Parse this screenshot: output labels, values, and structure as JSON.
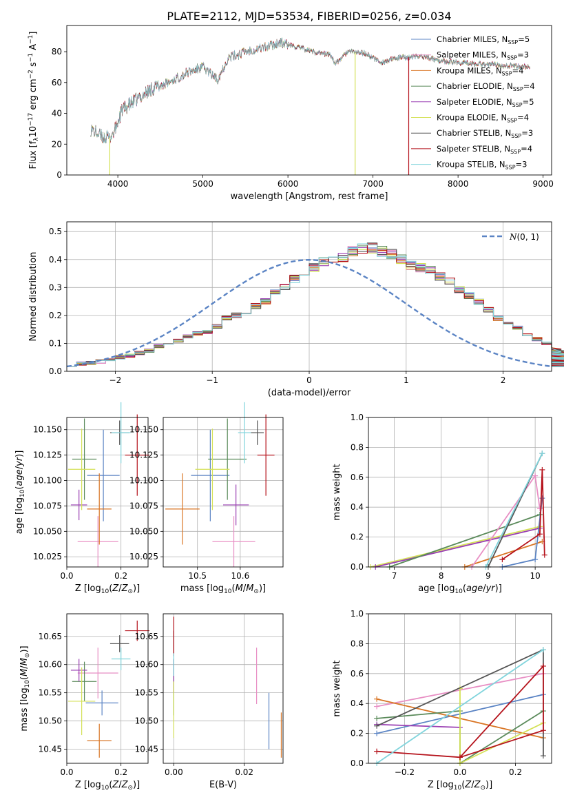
{
  "figure_title": "PLATE=2112, MJD=53534, FIBERID=0256, z=0.034",
  "colors": {
    "Chabrier MILES": "#5b84c4",
    "Salpeter MILES": "#e88fc4",
    "Kroupa MILES": "#d97524",
    "Chabrier ELODIE": "#5a8a5a",
    "Salpeter ELODIE": "#9a3fb3",
    "Kroupa ELODIE": "#d4e157",
    "Chabrier STELIB": "#555555",
    "Salpeter STELIB": "#b5121b",
    "Kroupa STELIB": "#80d4dc",
    "normal_curve": "#5b84c4",
    "grid": "#b0b0b0"
  },
  "models": [
    {
      "key": "Chabrier MILES",
      "legend": "Chabrier MILES, N",
      "nssp": "=5"
    },
    {
      "key": "Salpeter MILES",
      "legend": "Salpeter MILES, N",
      "nssp": "=3"
    },
    {
      "key": "Kroupa MILES",
      "legend": "Kroupa MILES, N",
      "nssp": "=4"
    },
    {
      "key": "Chabrier ELODIE",
      "legend": "Chabrier ELODIE, N",
      "nssp": "=4"
    },
    {
      "key": "Salpeter ELODIE",
      "legend": "Salpeter ELODIE, N",
      "nssp": "=5"
    },
    {
      "key": "Kroupa ELODIE",
      "legend": "Kroupa ELODIE, N",
      "nssp": "=4"
    },
    {
      "key": "Chabrier STELIB",
      "legend": "Chabrier STELIB, N",
      "nssp": "=3"
    },
    {
      "key": "Salpeter STELIB",
      "legend": "Salpeter STELIB, N",
      "nssp": "=4"
    },
    {
      "key": "Kroupa STELIB",
      "legend": "Kroupa STELIB, N",
      "nssp": "=3"
    }
  ],
  "chart_data": [
    {
      "id": "spectrum",
      "type": "line",
      "xlabel": "wavelength [Angstrom, rest frame]",
      "ylabel": "Flux [f_λ 10^-17 erg cm^-2 s^-1 A^-1]",
      "xlim": [
        3400,
        9100
      ],
      "ylim": [
        0,
        97
      ],
      "xticks": [
        4000,
        5000,
        6000,
        7000,
        8000,
        9000
      ],
      "yticks": [
        0,
        20,
        40,
        60,
        80
      ],
      "legend_position": "top-right",
      "continuum": [
        [
          3680,
          30
        ],
        [
          3800,
          25
        ],
        [
          3900,
          24
        ],
        [
          3960,
          28
        ],
        [
          4050,
          42
        ],
        [
          4200,
          48
        ],
        [
          4400,
          56
        ],
        [
          4600,
          60
        ],
        [
          4800,
          66
        ],
        [
          5000,
          70
        ],
        [
          5170,
          62
        ],
        [
          5300,
          76
        ],
        [
          5500,
          80
        ],
        [
          5800,
          84
        ],
        [
          5900,
          86
        ],
        [
          6100,
          83
        ],
        [
          6300,
          80
        ],
        [
          6500,
          78
        ],
        [
          6563,
          72
        ],
        [
          6700,
          80
        ],
        [
          6900,
          79
        ],
        [
          7100,
          73
        ],
        [
          7300,
          76
        ],
        [
          7600,
          77
        ],
        [
          7800,
          74
        ],
        [
          8000,
          73
        ],
        [
          8300,
          72
        ],
        [
          8600,
          71
        ],
        [
          8850,
          70
        ]
      ],
      "spikes": [
        {
          "model": "Kroupa ELODIE",
          "x": 3905,
          "y": 0
        },
        {
          "model": "Kroupa ELODIE",
          "x": 6790,
          "y": 0
        },
        {
          "model": "Salpeter STELIB",
          "x": 7420,
          "y": 0
        }
      ]
    },
    {
      "id": "residual_hist",
      "type": "bar",
      "xlabel": "(data-model)/error",
      "ylabel": "Normed distribution",
      "xlim": [
        -2.5,
        2.5
      ],
      "ylim": [
        0,
        0.535
      ],
      "xticks": [
        -2,
        -1,
        0,
        1,
        2
      ],
      "yticks": [
        0.0,
        0.1,
        0.2,
        0.3,
        0.4,
        0.5
      ],
      "bin_width": 0.1,
      "bin_start": -2.5,
      "normal_label": "N(0,1)",
      "normal_mu": 0,
      "normal_sigma": 1,
      "base_counts": [
        0.025,
        0.028,
        0.03,
        0.035,
        0.04,
        0.05,
        0.055,
        0.065,
        0.075,
        0.09,
        0.1,
        0.11,
        0.125,
        0.135,
        0.14,
        0.16,
        0.19,
        0.2,
        0.21,
        0.235,
        0.25,
        0.285,
        0.3,
        0.33,
        0.35,
        0.37,
        0.39,
        0.4,
        0.41,
        0.43,
        0.44,
        0.44,
        0.43,
        0.42,
        0.4,
        0.38,
        0.37,
        0.36,
        0.34,
        0.32,
        0.29,
        0.27,
        0.25,
        0.22,
        0.19,
        0.17,
        0.155,
        0.13,
        0.115,
        0.1,
        0.085,
        0.075,
        0.065,
        0.055,
        0.045,
        0.04,
        0.035,
        0.03,
        0.025,
        0.022
      ],
      "jitter_seed": 7
    },
    {
      "id": "age_vs_Z",
      "type": "scatter",
      "xlabel": "Z [log10(Z/Z⊙)]",
      "ylabel": "age  [log10(age/yr)]",
      "xlim": [
        0.0,
        0.3
      ],
      "ylim": [
        10.015,
        10.162
      ],
      "xticks": [
        0.0,
        0.2
      ],
      "yticks": [
        10.025,
        10.05,
        10.075,
        10.1,
        10.125,
        10.15
      ],
      "points": [
        {
          "model": "Chabrier MILES",
          "x": 0.135,
          "y": 10.105,
          "xerr": 0.06,
          "yerr": 0.045
        },
        {
          "model": "Salpeter MILES",
          "x": 0.115,
          "y": 10.04,
          "xerr": 0.075,
          "yerr": 0.025
        },
        {
          "model": "Kroupa MILES",
          "x": 0.12,
          "y": 10.072,
          "xerr": 0.045,
          "yerr": 0.035
        },
        {
          "model": "Chabrier ELODIE",
          "x": 0.065,
          "y": 10.121,
          "xerr": 0.045,
          "yerr": 0.04
        },
        {
          "model": "Salpeter ELODIE",
          "x": 0.045,
          "y": 10.076,
          "xerr": 0.03,
          "yerr": 0.015
        },
        {
          "model": "Kroupa ELODIE",
          "x": 0.055,
          "y": 10.111,
          "xerr": 0.05,
          "yerr": 0.04
        },
        {
          "model": "Chabrier STELIB",
          "x": 0.195,
          "y": 10.147,
          "xerr": 0.035,
          "yerr": 0.012
        },
        {
          "model": "Salpeter STELIB",
          "x": 0.26,
          "y": 10.125,
          "xerr": 0.045,
          "yerr": 0.04
        },
        {
          "model": "Kroupa STELIB",
          "x": 0.2,
          "y": 10.147,
          "xerr": 0.035,
          "yerr": 0.03
        }
      ]
    },
    {
      "id": "age_vs_mass",
      "type": "scatter",
      "xlabel": "mass [log10(M/M⊙)]",
      "ylabel": "",
      "xlim": [
        10.42,
        10.7
      ],
      "ylim": [
        10.015,
        10.162
      ],
      "xticks": [
        10.5,
        10.6
      ],
      "yticks": [
        10.025,
        10.05,
        10.075,
        10.1,
        10.125,
        10.15
      ],
      "points": [
        {
          "model": "Chabrier MILES",
          "x": 10.53,
          "y": 10.105,
          "xerr": 0.045,
          "yerr": 0.045
        },
        {
          "model": "Salpeter MILES",
          "x": 10.585,
          "y": 10.04,
          "xerr": 0.05,
          "yerr": 0.025
        },
        {
          "model": "Kroupa MILES",
          "x": 10.465,
          "y": 10.072,
          "xerr": 0.04,
          "yerr": 0.035
        },
        {
          "model": "Chabrier ELODIE",
          "x": 10.57,
          "y": 10.121,
          "xerr": 0.045,
          "yerr": 0.04
        },
        {
          "model": "Salpeter ELODIE",
          "x": 10.59,
          "y": 10.076,
          "xerr": 0.03,
          "yerr": 0.02
        },
        {
          "model": "Kroupa ELODIE",
          "x": 10.535,
          "y": 10.111,
          "xerr": 0.04,
          "yerr": 0.04
        },
        {
          "model": "Chabrier STELIB",
          "x": 10.64,
          "y": 10.147,
          "xerr": 0.015,
          "yerr": 0.012
        },
        {
          "model": "Salpeter STELIB",
          "x": 10.66,
          "y": 10.125,
          "xerr": 0.02,
          "yerr": 0.04
        },
        {
          "model": "Kroupa STELIB",
          "x": 10.61,
          "y": 10.147,
          "xerr": 0.015,
          "yerr": 0.03
        }
      ]
    },
    {
      "id": "weight_vs_age",
      "type": "line",
      "xlabel": "age  [log10(age/yr)]",
      "ylabel": "mass weight",
      "xlim": [
        6.45,
        10.35
      ],
      "ylim": [
        0.0,
        1.0
      ],
      "xticks": [
        7,
        8,
        9,
        10
      ],
      "yticks": [
        0.0,
        0.2,
        0.4,
        0.6,
        0.8,
        1.0
      ],
      "series": [
        {
          "model": "Kroupa ELODIE",
          "points": [
            [
              6.5,
              0.0
            ],
            [
              10.1,
              0.27
            ]
          ]
        },
        {
          "model": "Salpeter ELODIE",
          "points": [
            [
              6.6,
              0.0
            ],
            [
              10.1,
              0.26
            ]
          ]
        },
        {
          "model": "Chabrier ELODIE",
          "points": [
            [
              6.9,
              0.0
            ],
            [
              10.1,
              0.35
            ]
          ]
        },
        {
          "model": "Kroupa MILES",
          "points": [
            [
              8.5,
              0.0
            ],
            [
              10.15,
              0.17
            ]
          ]
        },
        {
          "model": "Salpeter MILES",
          "points": [
            [
              8.65,
              0.0
            ],
            [
              10.0,
              0.61
            ],
            [
              10.1,
              0.39
            ]
          ]
        },
        {
          "model": "Chabrier MILES",
          "points": [
            [
              9.3,
              0.0
            ],
            [
              10.0,
              0.05
            ],
            [
              10.15,
              0.46
            ]
          ]
        },
        {
          "model": "Salpeter STELIB",
          "points": [
            [
              9.3,
              0.05
            ],
            [
              10.1,
              0.22
            ],
            [
              10.15,
              0.65
            ],
            [
              10.2,
              0.08
            ]
          ]
        },
        {
          "model": "Chabrier STELIB",
          "points": [
            [
              9.0,
              0.0
            ],
            [
              10.15,
              0.76
            ]
          ]
        },
        {
          "model": "Kroupa STELIB",
          "points": [
            [
              8.95,
              0.0
            ],
            [
              10.15,
              0.76
            ]
          ]
        }
      ]
    },
    {
      "id": "mass_vs_Z",
      "type": "scatter",
      "xlabel": "Z [log10(Z/Z⊙)]",
      "ylabel": "mass [log10(M/M⊙)]",
      "xlim": [
        0.0,
        0.3
      ],
      "ylim": [
        10.425,
        10.69
      ],
      "xticks": [
        0.0,
        0.2
      ],
      "yticks": [
        10.45,
        10.5,
        10.55,
        10.6,
        10.65
      ],
      "points": [
        {
          "model": "Chabrier MILES",
          "x": 0.13,
          "y": 10.532,
          "xerr": 0.06,
          "yerr": 0.022
        },
        {
          "model": "Salpeter MILES",
          "x": 0.115,
          "y": 10.585,
          "xerr": 0.075,
          "yerr": 0.045
        },
        {
          "model": "Kroupa MILES",
          "x": 0.12,
          "y": 10.465,
          "xerr": 0.045,
          "yerr": 0.03
        },
        {
          "model": "Chabrier ELODIE",
          "x": 0.065,
          "y": 10.57,
          "xerr": 0.045,
          "yerr": 0.035
        },
        {
          "model": "Salpeter ELODIE",
          "x": 0.045,
          "y": 10.59,
          "xerr": 0.03,
          "yerr": 0.02
        },
        {
          "model": "Kroupa ELODIE",
          "x": 0.055,
          "y": 10.535,
          "xerr": 0.05,
          "yerr": 0.06
        },
        {
          "model": "Chabrier STELIB",
          "x": 0.195,
          "y": 10.637,
          "xerr": 0.035,
          "yerr": 0.015
        },
        {
          "model": "Salpeter STELIB",
          "x": 0.26,
          "y": 10.66,
          "xerr": 0.045,
          "yerr": 0.018
        },
        {
          "model": "Kroupa STELIB",
          "x": 0.2,
          "y": 10.61,
          "xerr": 0.035,
          "yerr": 0.02
        }
      ]
    },
    {
      "id": "mass_vs_ebv",
      "type": "scatter",
      "xlabel": "E(B-V)",
      "ylabel": "",
      "xlim": [
        -0.003,
        0.031
      ],
      "ylim": [
        10.425,
        10.69
      ],
      "xticks": [
        0.0,
        0.02
      ],
      "yticks": [
        10.45,
        10.5,
        10.55,
        10.6,
        10.65
      ],
      "points": [
        {
          "model": "Chabrier MILES",
          "x": 0.027,
          "y": 10.5,
          "xerr": 0,
          "yerr": 0.05
        },
        {
          "model": "Salpeter MILES",
          "x": 0.0235,
          "y": 10.58,
          "xerr": 0,
          "yerr": 0.05
        },
        {
          "model": "Kroupa MILES",
          "x": 0.0305,
          "y": 10.475,
          "xerr": 0,
          "yerr": 0.04
        },
        {
          "model": "Chabrier ELODIE",
          "x": 0.0,
          "y": 10.56,
          "xerr": 0,
          "yerr": 0.05
        },
        {
          "model": "Salpeter ELODIE",
          "x": 0.0,
          "y": 10.58,
          "xerr": 0,
          "yerr": 0.03
        },
        {
          "model": "Kroupa ELODIE",
          "x": 0.0,
          "y": 10.52,
          "xerr": 0,
          "yerr": 0.05
        },
        {
          "model": "Chabrier STELIB",
          "x": 0.0,
          "y": 10.64,
          "xerr": 0,
          "yerr": 0.02
        },
        {
          "model": "Salpeter STELIB",
          "x": 0.0,
          "y": 10.65,
          "xerr": 0,
          "yerr": 0.035
        },
        {
          "model": "Kroupa STELIB",
          "x": 0.0,
          "y": 10.6,
          "xerr": 0,
          "yerr": 0.02
        }
      ]
    },
    {
      "id": "weight_vs_Z",
      "type": "line",
      "xlabel": "Z [log10(Z/Z⊙)]",
      "ylabel": "mass weight",
      "xlim": [
        -0.33,
        0.33
      ],
      "ylim": [
        0.0,
        1.0
      ],
      "xticks": [
        -0.2,
        0.0,
        0.2
      ],
      "yticks": [
        0.0,
        0.2,
        0.4,
        0.6,
        0.8,
        1.0
      ],
      "series": [
        {
          "model": "Chabrier MILES",
          "points": [
            [
              -0.3,
              0.2
            ],
            [
              0.3,
              0.46
            ]
          ]
        },
        {
          "model": "Salpeter MILES",
          "points": [
            [
              -0.3,
              0.38
            ],
            [
              0.3,
              0.6
            ]
          ]
        },
        {
          "model": "Kroupa MILES",
          "points": [
            [
              -0.3,
              0.43
            ],
            [
              0.3,
              0.17
            ]
          ]
        },
        {
          "model": "Chabrier ELODIE",
          "points": [
            [
              -0.3,
              0.3
            ],
            [
              0.0,
              0.35
            ],
            [
              0.0,
              0.0
            ],
            [
              0.3,
              0.35
            ]
          ]
        },
        {
          "model": "Salpeter ELODIE",
          "points": [
            [
              -0.3,
              0.26
            ],
            [
              0.0,
              0.24
            ]
          ]
        },
        {
          "model": "Kroupa ELODIE",
          "points": [
            [
              0.0,
              0.5
            ],
            [
              0.0,
              0.0
            ],
            [
              0.3,
              0.27
            ]
          ]
        },
        {
          "model": "Chabrier STELIB",
          "points": [
            [
              -0.3,
              0.25
            ],
            [
              0.3,
              0.76
            ],
            [
              0.3,
              0.05
            ]
          ]
        },
        {
          "model": "Salpeter STELIB",
          "points": [
            [
              -0.3,
              0.08
            ],
            [
              0.0,
              0.04
            ],
            [
              0.3,
              0.65
            ],
            [
              0.3,
              0.22
            ],
            [
              0.0,
              0.04
            ]
          ]
        },
        {
          "model": "Kroupa STELIB",
          "points": [
            [
              -0.3,
              0.0
            ],
            [
              0.3,
              0.76
            ]
          ]
        }
      ]
    }
  ]
}
